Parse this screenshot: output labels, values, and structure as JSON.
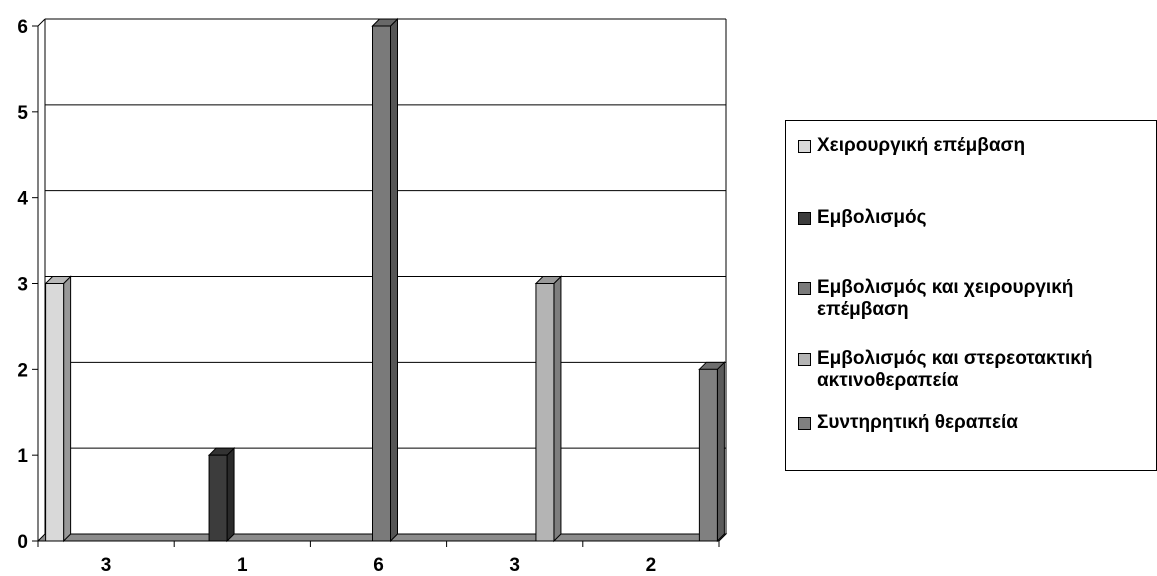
{
  "chart_data": {
    "type": "bar",
    "title": "",
    "xlabel": "",
    "ylabel": "",
    "ylim": [
      0,
      6
    ],
    "yticks": [
      "0",
      "1",
      "2",
      "3",
      "4",
      "5",
      "6"
    ],
    "categories": [
      "3",
      "1",
      "6",
      "3",
      "2"
    ],
    "grid": true,
    "legend_position": "right",
    "series": [
      {
        "name": "Χειρουργική επέμβαση",
        "color": "#d9d9d9",
        "values": [
          3,
          0,
          0,
          0,
          0
        ]
      },
      {
        "name": "Εμβολισμός",
        "color": "#3c3c3c",
        "values": [
          0,
          1,
          0,
          0,
          0
        ]
      },
      {
        "name": "Εμβολισμός και χειρουργική επέμβαση",
        "color": "#7a7a7a",
        "values": [
          0,
          0,
          6,
          0,
          0
        ]
      },
      {
        "name": "Εμβολισμός και στερεοτακτική ακτινοθεραπεία",
        "color": "#b4b4b4",
        "values": [
          0,
          0,
          0,
          3,
          0
        ]
      },
      {
        "name": "Συντηρητική θεραπεία",
        "color": "#808080",
        "values": [
          0,
          0,
          0,
          0,
          2
        ]
      }
    ]
  }
}
